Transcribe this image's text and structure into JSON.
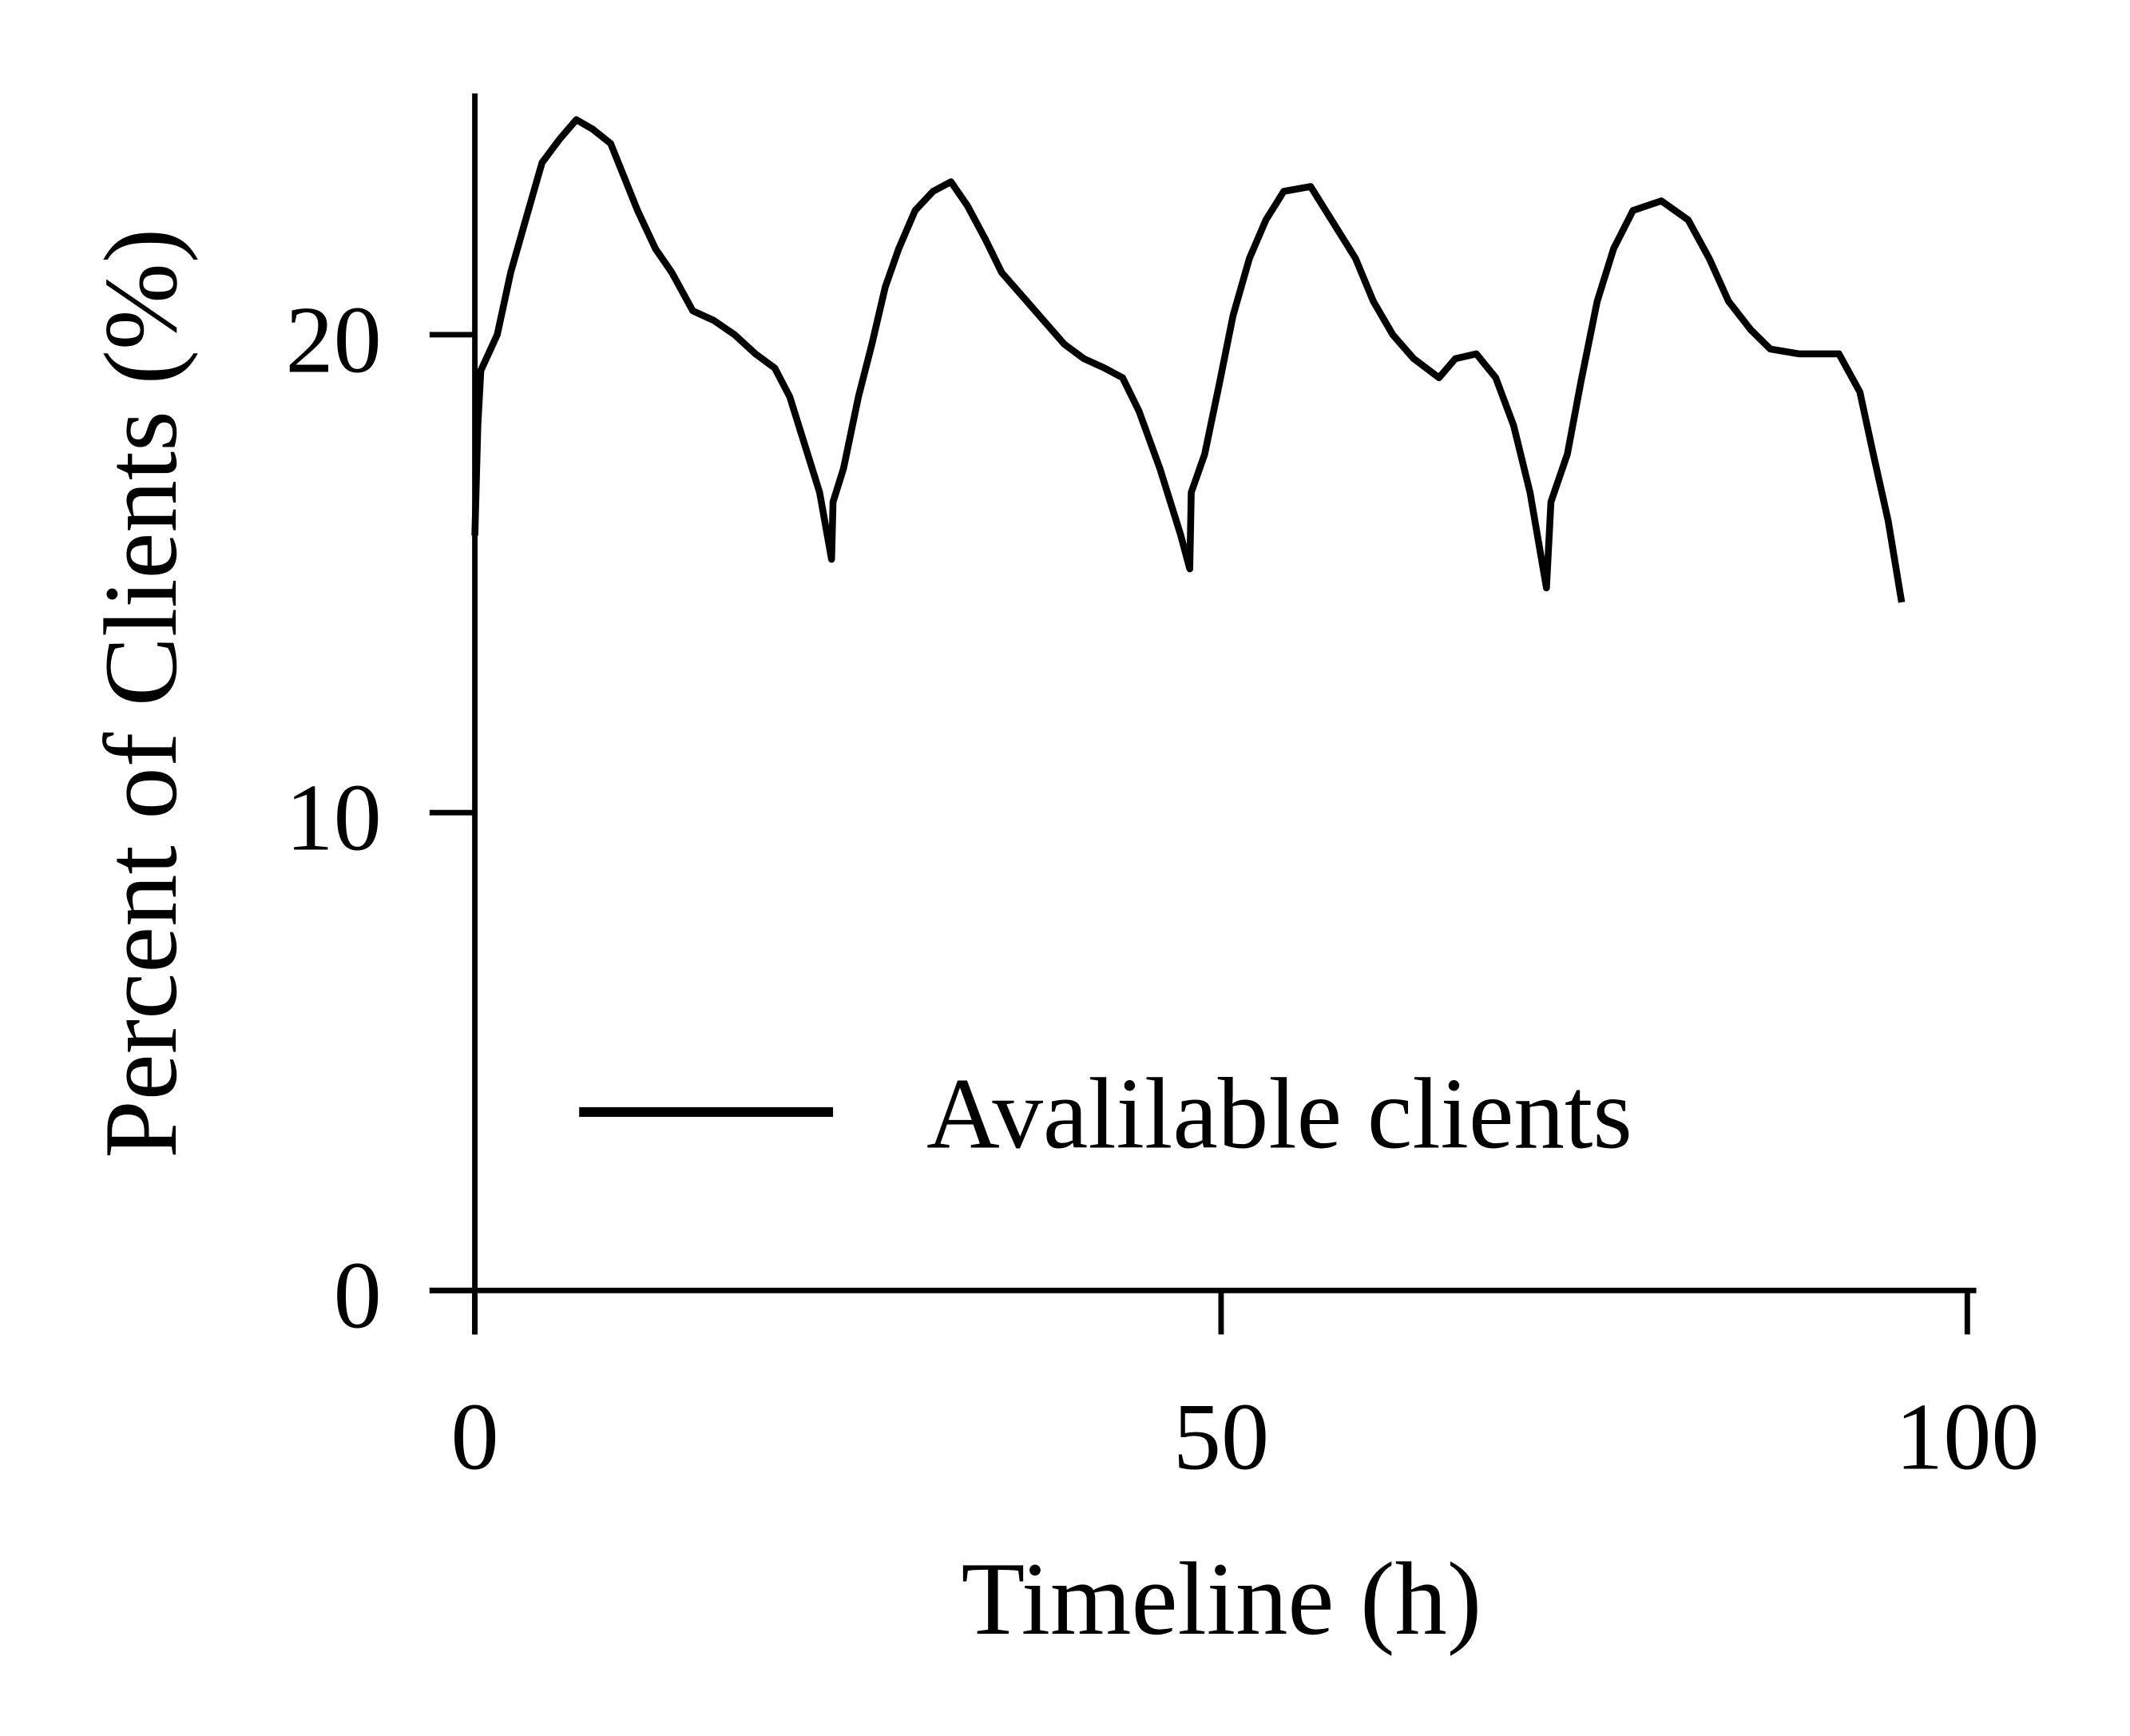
{
  "chart_data": {
    "type": "line",
    "x_label": "Timeline (h)",
    "y_label": "Percent of Clients (%)",
    "x": [
      0,
      0.2,
      0.4,
      1.5,
      2.4,
      3.4,
      4.5,
      5.7,
      6.8,
      7.9,
      9.1,
      10,
      10.9,
      12.1,
      13.2,
      14.6,
      16,
      17.4,
      18.8,
      20.1,
      21.1,
      22,
      23.1,
      23.9,
      24.0,
      24.7,
      25.7,
      26.6,
      27.5,
      28.4,
      29.5,
      30.7,
      31.9,
      33,
      34.2,
      35.3,
      36.7,
      38.1,
      39.5,
      40.8,
      42.2,
      43.4,
      44.5,
      45.9,
      47.3,
      47.9,
      48.0,
      48.9,
      49.9,
      50.8,
      51.9,
      53,
      54.2,
      56,
      57.4,
      59,
      60.2,
      61.5,
      62.9,
      64.6,
      65.7,
      67.1,
      68.4,
      69.6,
      70.7,
      71.8,
      72.1,
      73.2,
      74.1,
      75.2,
      76.3,
      77.6,
      79.5,
      81.3,
      82.7,
      84,
      85.5,
      86.8,
      88.7,
      90.5,
      91.4,
      92.8,
      93.7,
      94.7,
      95.6
    ],
    "series": [
      {
        "name": "Avalilable clients",
        "color": "#000000",
        "values": [
          15.8,
          18.1,
          19.25,
          20,
          21.3,
          22.4,
          23.6,
          24.1,
          24.5,
          24.3,
          24.0,
          23.3,
          22.6,
          21.8,
          21.3,
          20.5,
          20.3,
          20.0,
          19.6,
          19.3,
          18.7,
          17.8,
          16.7,
          15.3,
          16.5,
          17.2,
          18.7,
          19.8,
          21.0,
          21.8,
          22.6,
          23.0,
          23.2,
          22.7,
          22.0,
          21.3,
          20.8,
          20.3,
          19.8,
          19.5,
          19.3,
          19.1,
          18.4,
          17.2,
          15.8,
          15.1,
          16.7,
          17.5,
          19.0,
          20.4,
          21.6,
          22.4,
          23.0,
          23.1,
          22.4,
          21.6,
          20.7,
          20.0,
          19.5,
          19.1,
          19.5,
          19.6,
          19.1,
          18.1,
          16.7,
          14.7,
          16.5,
          17.5,
          19.0,
          20.7,
          21.8,
          22.6,
          22.8,
          22.4,
          21.6,
          20.7,
          20.1,
          19.7,
          19.6,
          19.6,
          19.6,
          18.8,
          17.5,
          16.1,
          14.4
        ]
      }
    ],
    "xlim": [
      0,
      100.6
    ],
    "ylim": [
      0,
      25.05
    ],
    "xticks": [
      0,
      50,
      100
    ],
    "yticks": [
      0,
      10,
      20
    ],
    "grid": false,
    "legend": "lower center"
  }
}
